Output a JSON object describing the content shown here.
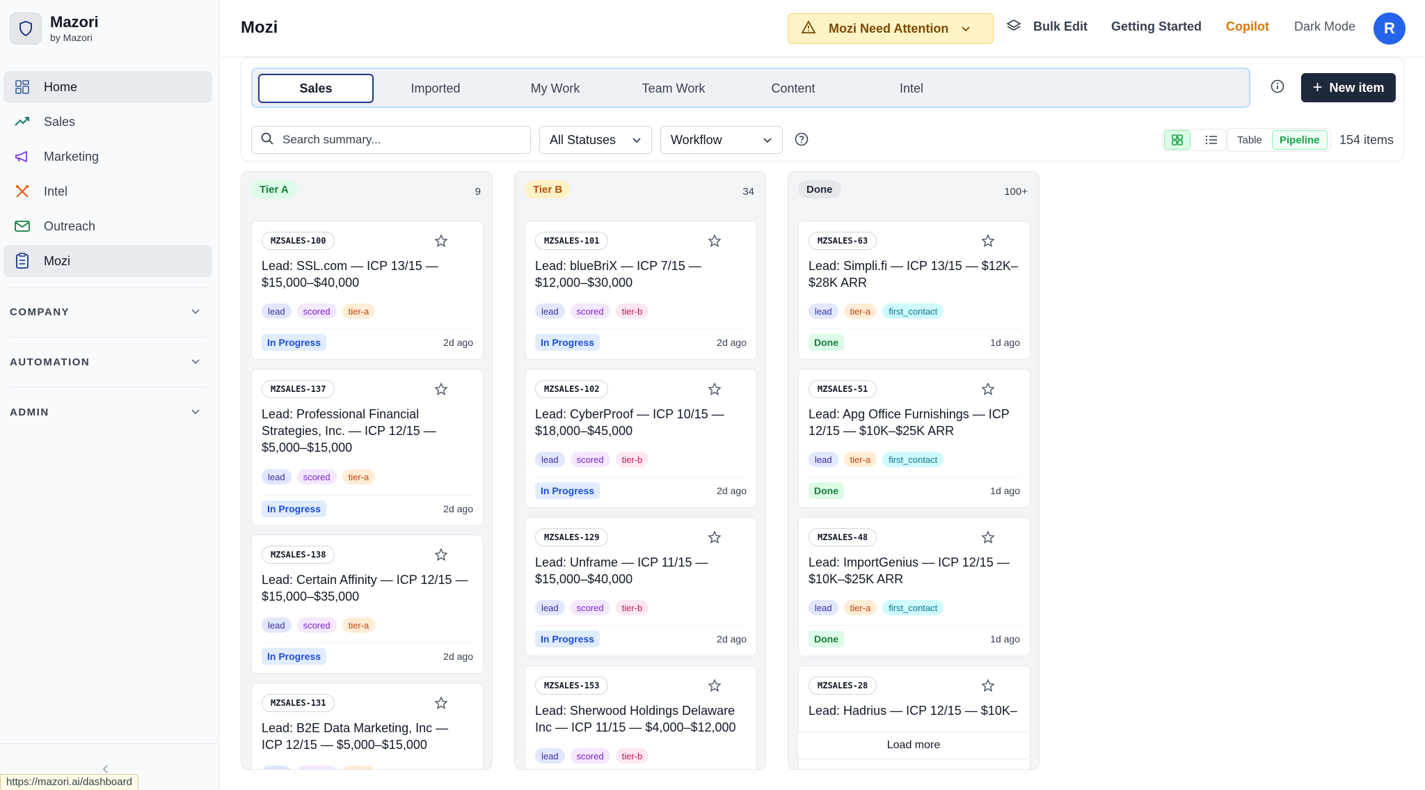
{
  "brand": {
    "name": "Mazori",
    "sub": "by Mazori"
  },
  "sidebar": {
    "items": [
      {
        "label": "Home",
        "icon": "grid-icon"
      },
      {
        "label": "Sales",
        "icon": "trend-icon"
      },
      {
        "label": "Marketing",
        "icon": "megaphone-icon"
      },
      {
        "label": "Intel",
        "icon": "tools-icon"
      },
      {
        "label": "Outreach",
        "icon": "mail-icon"
      },
      {
        "label": "Mozi",
        "icon": "clipboard-icon"
      }
    ],
    "sections": [
      "COMPANY",
      "AUTOMATION",
      "ADMIN"
    ],
    "status_url": "https://mazori.ai/dashboard"
  },
  "header": {
    "title": "Mozi",
    "attention": "Mozi Need Attention",
    "bulk_edit": "Bulk Edit",
    "getting_started": "Getting Started",
    "copilot": "Copilot",
    "dark_mode": "Dark Mode",
    "avatar": "R"
  },
  "tabs": [
    "Sales",
    "Imported",
    "My Work",
    "Team Work",
    "Content",
    "Intel"
  ],
  "toolbar": {
    "new_item": "New item",
    "search_placeholder": "Search summary...",
    "status_filter": "All Statuses",
    "workflow_filter": "Workflow",
    "view_table": "Table",
    "view_pipeline": "Pipeline",
    "item_count": "154 items"
  },
  "columns": [
    {
      "name": "Tier A",
      "count": "9",
      "cards": [
        {
          "id": "MZSALES-100",
          "title": "Lead: SSL.com — ICP 13/15 — $15,000–$40,000",
          "tags": [
            "lead",
            "scored",
            "tier-a"
          ],
          "status": "In Progress",
          "ago": "2d ago"
        },
        {
          "id": "MZSALES-137",
          "title": "Lead: Professional Financial Strategies, Inc. — ICP 12/15 — $5,000–$15,000",
          "tags": [
            "lead",
            "scored",
            "tier-a"
          ],
          "status": "In Progress",
          "ago": "2d ago"
        },
        {
          "id": "MZSALES-138",
          "title": "Lead: Certain Affinity — ICP 12/15 — $15,000–$35,000",
          "tags": [
            "lead",
            "scored",
            "tier-a"
          ],
          "status": "In Progress",
          "ago": "2d ago"
        },
        {
          "id": "MZSALES-131",
          "title": "Lead: B2E Data Marketing, Inc — ICP 12/15 — $5,000–$15,000",
          "tags": [
            "lead",
            "scored",
            "tier-a"
          ],
          "status": "",
          "ago": ""
        }
      ]
    },
    {
      "name": "Tier B",
      "count": "34",
      "cards": [
        {
          "id": "MZSALES-101",
          "title": "Lead: blueBriX — ICP 7/15 — $12,000–$30,000",
          "tags": [
            "lead",
            "scored",
            "tier-b"
          ],
          "status": "In Progress",
          "ago": "2d ago"
        },
        {
          "id": "MZSALES-102",
          "title": "Lead: CyberProof — ICP 10/15 — $18,000–$45,000",
          "tags": [
            "lead",
            "scored",
            "tier-b"
          ],
          "status": "In Progress",
          "ago": "2d ago"
        },
        {
          "id": "MZSALES-129",
          "title": "Lead: Unframe — ICP 11/15 — $15,000–$40,000",
          "tags": [
            "lead",
            "scored",
            "tier-b"
          ],
          "status": "In Progress",
          "ago": "2d ago"
        },
        {
          "id": "MZSALES-153",
          "title": "Lead: Sherwood Holdings Delaware Inc — ICP 11/15 — $4,000–$12,000",
          "tags": [
            "lead",
            "scored",
            "tier-b"
          ],
          "status": "",
          "ago": ""
        }
      ]
    },
    {
      "name": "Done",
      "count": "100+",
      "cards": [
        {
          "id": "MZSALES-63",
          "title": "Lead: Simpli.fi — ICP 13/15 — $12K–$28K ARR",
          "tags": [
            "lead",
            "tier-a",
            "first_contact"
          ],
          "status": "Done",
          "ago": "1d ago"
        },
        {
          "id": "MZSALES-51",
          "title": "Lead: Apg Office Furnishings — ICP 12/15 — $10K–$25K ARR",
          "tags": [
            "lead",
            "tier-a",
            "first_contact"
          ],
          "status": "Done",
          "ago": "1d ago"
        },
        {
          "id": "MZSALES-48",
          "title": "Lead: ImportGenius — ICP 12/15 — $10K–$25K ARR",
          "tags": [
            "lead",
            "tier-a",
            "first_contact"
          ],
          "status": "Done",
          "ago": "1d ago"
        },
        {
          "id": "MZSALES-28",
          "title": "Lead: Hadrius — ICP 12/15 — $10K–",
          "tags": [],
          "status": "",
          "ago": ""
        }
      ],
      "load_more": "Load more"
    }
  ],
  "colors": {
    "accent_navy": "#1e293b",
    "tier_a": "#16a34a",
    "tier_b": "#b45309",
    "attention": "#fef3c7"
  }
}
